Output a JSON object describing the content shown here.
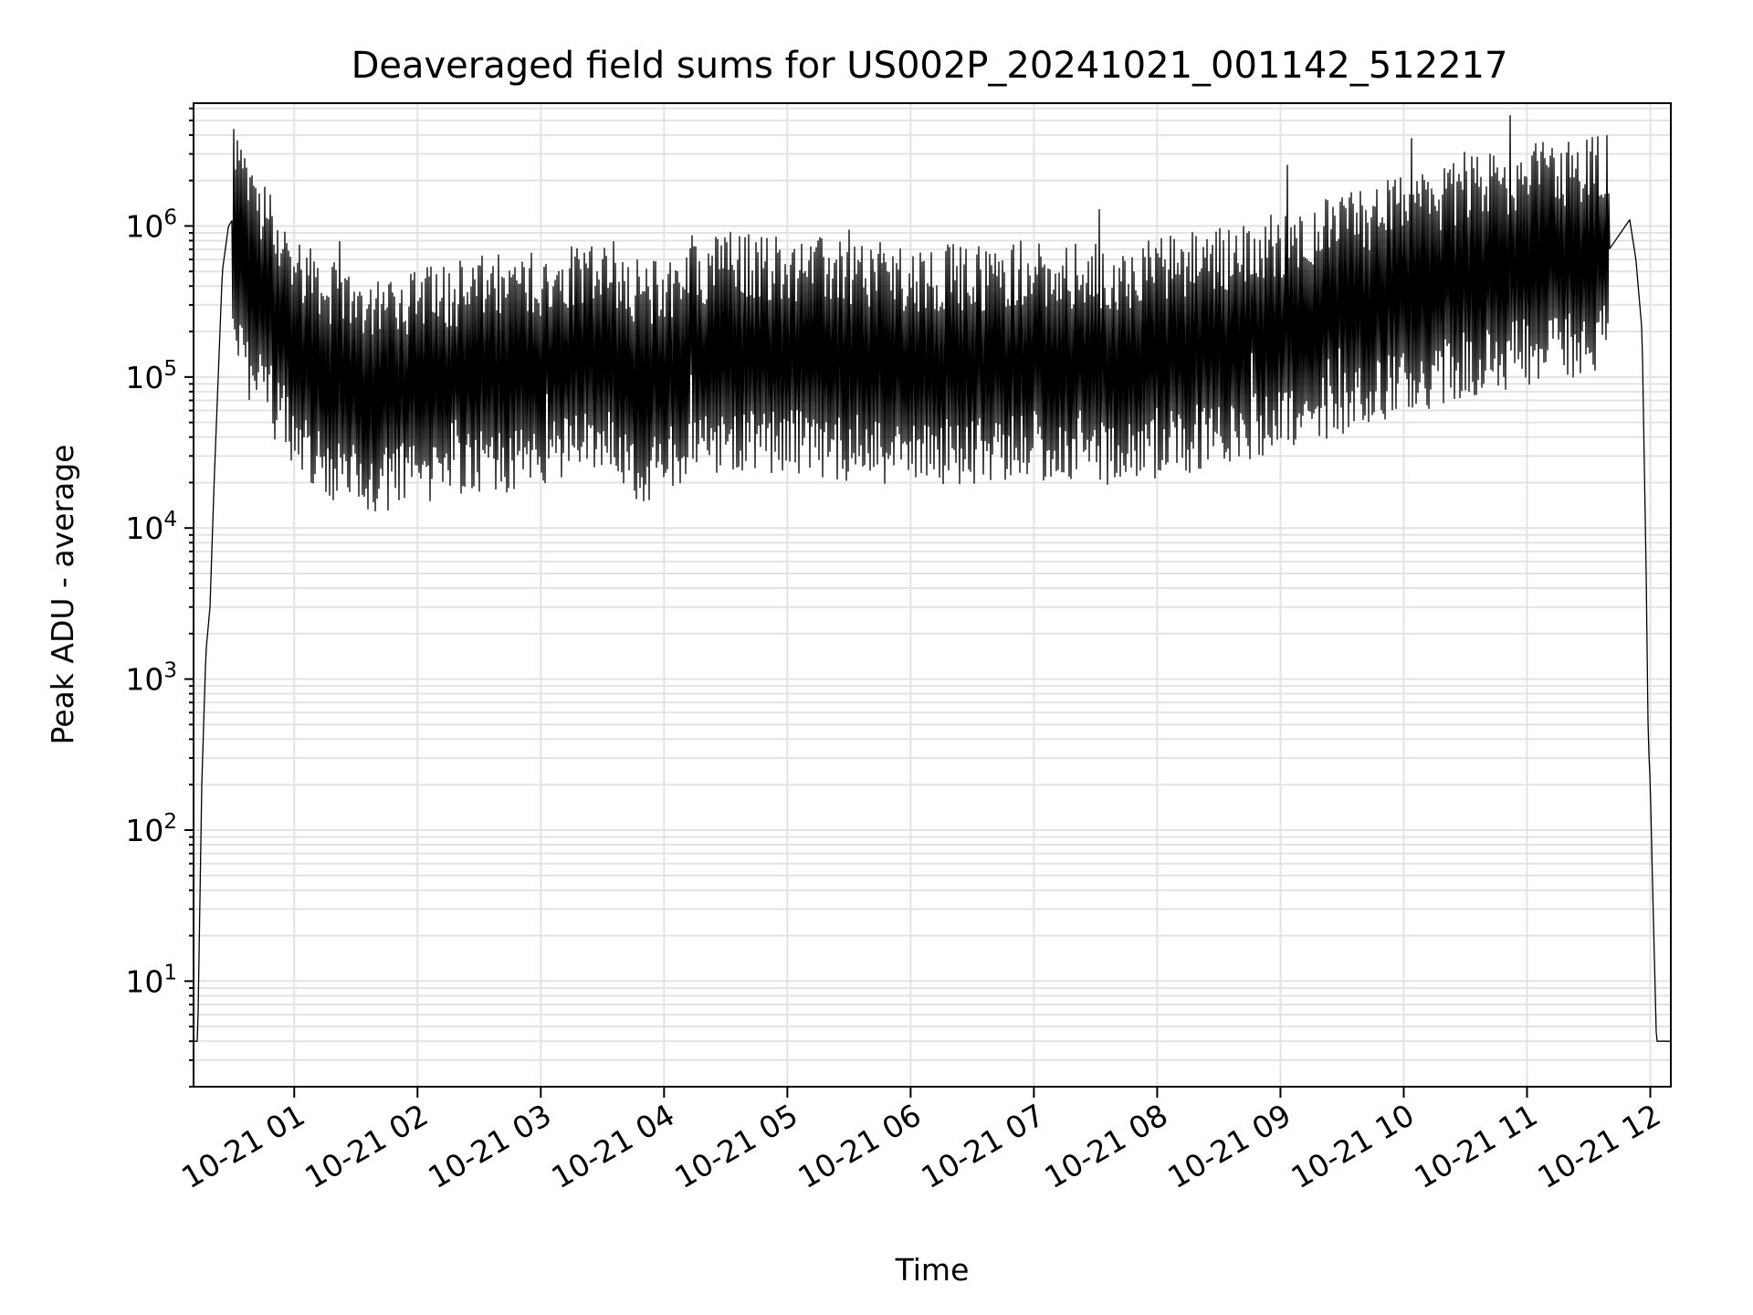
{
  "chart_data": {
    "type": "line",
    "title": "Deaveraged field sums for US002P_20241021_001142_512217",
    "xlabel": "Time",
    "ylabel": "Peak ADU - average",
    "yscale": "log",
    "ylim": [
      2,
      6500000
    ],
    "xlim": [
      "2024-10-21 00:11",
      "2024-10-21 12:10"
    ],
    "x_tick_labels": [
      "10-21 01",
      "10-21 02",
      "10-21 03",
      "10-21 04",
      "10-21 05",
      "10-21 06",
      "10-21 07",
      "10-21 08",
      "10-21 09",
      "10-21 10",
      "10-21 11",
      "10-21 12"
    ],
    "y_tick_labels": [
      {
        "base": "10",
        "exp": "1"
      },
      {
        "base": "10",
        "exp": "2"
      },
      {
        "base": "10",
        "exp": "3"
      },
      {
        "base": "10",
        "exp": "4"
      },
      {
        "base": "10",
        "exp": "5"
      },
      {
        "base": "10",
        "exp": "6"
      }
    ],
    "grid": true,
    "line_color": "#000000",
    "series": [
      {
        "x": [
          "2024-10-21 00:11",
          "2024-10-21 00:13",
          "2024-10-21 00:15",
          "2024-10-21 00:17",
          "2024-10-21 00:19",
          "2024-10-21 00:21",
          "2024-10-21 00:23",
          "2024-10-21 00:25",
          "2024-10-21 00:28",
          "2024-10-21 00:30",
          "2024-10-21 00:35",
          "2024-10-21 00:40",
          "2024-10-21 00:45",
          "2024-10-21 00:50",
          "2024-10-21 00:55",
          "2024-10-21 01:00",
          "2024-10-21 01:10",
          "2024-10-21 01:20",
          "2024-10-21 01:40",
          "2024-10-21 02:00",
          "2024-10-21 02:30",
          "2024-10-21 03:00",
          "2024-10-21 03:30",
          "2024-10-21 03:50",
          "2024-10-21 04:10",
          "2024-10-21 04:30",
          "2024-10-21 05:00",
          "2024-10-21 05:30",
          "2024-10-21 06:00",
          "2024-10-21 06:30",
          "2024-10-21 07:00",
          "2024-10-21 07:30",
          "2024-10-21 08:00",
          "2024-10-21 08:30",
          "2024-10-21 09:00",
          "2024-10-21 09:30",
          "2024-10-21 10:00",
          "2024-10-21 10:30",
          "2024-10-21 11:00",
          "2024-10-21 11:20",
          "2024-10-21 11:40",
          "2024-10-21 11:50",
          "2024-10-21 11:53",
          "2024-10-21 11:56",
          "2024-10-21 11:58",
          "2024-10-21 11:59",
          "2024-10-21 12:00",
          "2024-10-21 12:01",
          "2024-10-21 12:03",
          "2024-10-21 12:05",
          "2024-10-21 12:07",
          "2024-10-21 12:10"
        ],
        "y": [
          4,
          4,
          200,
          1500,
          3000,
          20000,
          100000,
          500000,
          1000000,
          1100000,
          500000,
          400000,
          350000,
          250000,
          200000,
          150000,
          120000,
          90000,
          80000,
          85000,
          100000,
          110000,
          150000,
          90000,
          120000,
          150000,
          140000,
          130000,
          120000,
          120000,
          130000,
          120000,
          130000,
          160000,
          200000,
          260000,
          350000,
          450000,
          550000,
          600000,
          700000,
          1100000,
          600000,
          200000,
          5000,
          400,
          200,
          50,
          4,
          4,
          4,
          4
        ]
      }
    ]
  }
}
